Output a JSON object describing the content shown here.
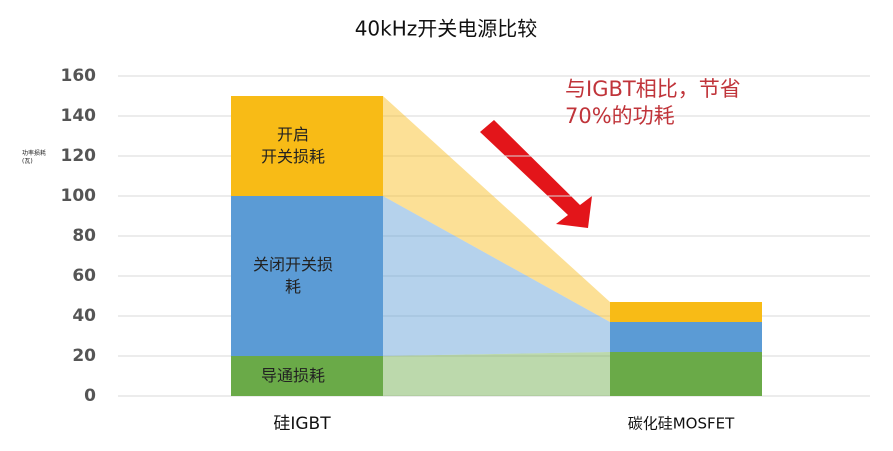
{
  "chart_data": {
    "type": "stacked-bar",
    "title": "40kHz开关电源比较",
    "y_label": "功率损耗\n(瓦)",
    "annotation": "与IGBT相比，节省\n70%的功耗",
    "categories": [
      "硅IGBT",
      "碳化硅MOSFET"
    ],
    "series": [
      {
        "name": "导通损耗",
        "color": "#6aaa48",
        "values": [
          20,
          22
        ]
      },
      {
        "name": "关闭开关损\n耗",
        "color": "#5b9bd5",
        "values": [
          80,
          15
        ]
      },
      {
        "name": "开启\n开关损耗",
        "color": "#f8bb16",
        "values": [
          50,
          10
        ]
      }
    ],
    "ylim": [
      0,
      160
    ],
    "yticks": [
      0,
      20,
      40,
      60,
      80,
      100,
      120,
      140,
      160
    ],
    "grid": true
  }
}
